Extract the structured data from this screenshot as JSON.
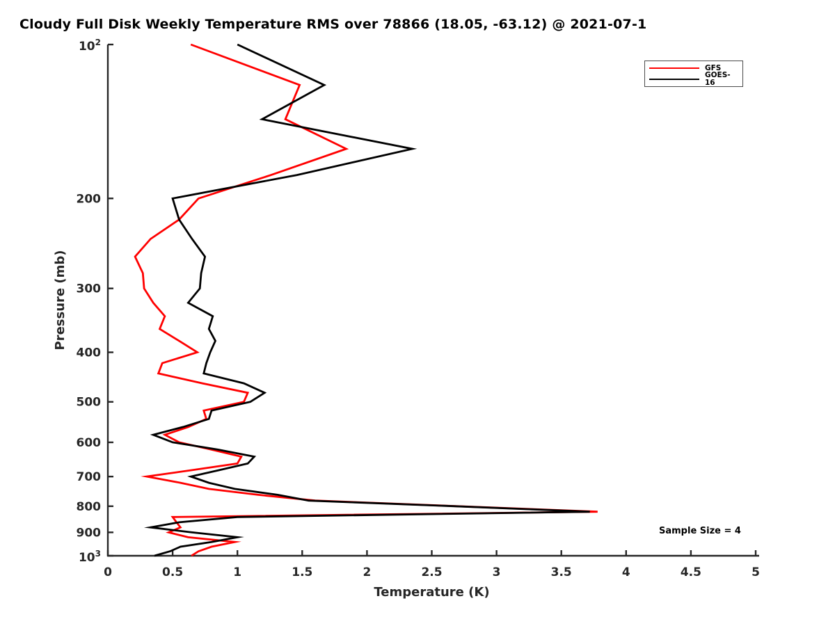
{
  "title": "Cloudy Full Disk Weekly Temperature RMS over 78866 (18.05, -63.12) @ 2021-07-1",
  "annotation": {
    "sample_size_text": "Sample Size = 4"
  },
  "legend": {
    "items": [
      {
        "label": "GFS",
        "color": "#ff0000"
      },
      {
        "label": "GOES-16",
        "color": "#000000"
      }
    ]
  },
  "axes": {
    "xlabel": "Temperature (K)",
    "ylabel": "Pressure (mb)"
  },
  "chart_data": {
    "type": "line",
    "title": "Cloudy Full Disk Weekly Temperature RMS over 78866 (18.05, -63.12) @ 2021-07-1",
    "xlabel": "Temperature (K)",
    "ylabel": "Pressure (mb)",
    "xlim": [
      0,
      5
    ],
    "xticks": [
      0,
      0.5,
      1,
      1.5,
      2,
      2.5,
      3,
      3.5,
      4,
      4.5,
      5
    ],
    "xtick_labels": [
      "0",
      "0.5",
      "1",
      "1.5",
      "2",
      "2.5",
      "3",
      "3.5",
      "4",
      "4.5",
      "5"
    ],
    "yscale": "log",
    "y_inverted": true,
    "ylim": [
      100,
      1000
    ],
    "yticks": [
      100,
      200,
      300,
      400,
      500,
      600,
      700,
      800,
      900,
      1000
    ],
    "ytick_labels": [
      "10^2",
      "200",
      "300",
      "400",
      "500",
      "600",
      "700",
      "800",
      "900",
      "10^3"
    ],
    "grid": false,
    "legend_position": "top-right",
    "annotation": "Sample Size = 4",
    "x_axis_name": "pressure_mb",
    "pressure_levels": [
      100,
      120,
      140,
      160,
      180,
      200,
      220,
      240,
      260,
      280,
      300,
      320,
      340,
      360,
      380,
      400,
      420,
      440,
      460,
      480,
      500,
      520,
      540,
      560,
      580,
      600,
      620,
      640,
      660,
      680,
      700,
      720,
      740,
      760,
      780,
      800,
      820,
      840,
      860,
      880,
      900,
      920,
      940,
      960,
      980,
      1000
    ],
    "series": [
      {
        "name": "GFS",
        "color": "#ff0000",
        "values": [
          0.64,
          1.48,
          1.37,
          1.84,
          1.26,
          0.7,
          0.55,
          0.33,
          0.21,
          0.27,
          0.28,
          0.35,
          0.44,
          0.4,
          0.55,
          0.69,
          0.42,
          0.39,
          0.73,
          1.08,
          1.05,
          0.74,
          0.76,
          0.62,
          0.44,
          0.55,
          0.8,
          1.03,
          1.0,
          0.65,
          0.3,
          0.56,
          0.78,
          1.16,
          1.6,
          2.7,
          3.78,
          0.5,
          0.53,
          0.56,
          0.47,
          0.62,
          0.98,
          0.8,
          0.7,
          0.645
        ]
      },
      {
        "name": "GOES-16",
        "color": "#000000",
        "values": [
          1.0,
          1.67,
          1.19,
          2.35,
          1.46,
          0.5,
          0.55,
          0.65,
          0.75,
          0.72,
          0.71,
          0.62,
          0.81,
          0.78,
          0.83,
          0.79,
          0.76,
          0.74,
          1.05,
          1.21,
          1.1,
          0.8,
          0.78,
          0.58,
          0.35,
          0.5,
          0.85,
          1.13,
          1.08,
          0.86,
          0.64,
          0.78,
          0.98,
          1.31,
          1.55,
          2.68,
          3.72,
          1.0,
          0.55,
          0.33,
          0.65,
          1.0,
          0.8,
          0.56,
          0.48,
          0.36
        ]
      }
    ]
  }
}
